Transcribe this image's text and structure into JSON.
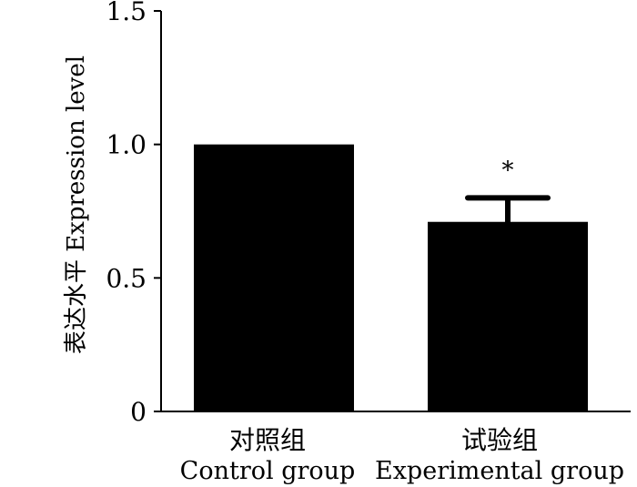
{
  "chart_data": {
    "type": "bar",
    "categories": [
      {
        "line1": "对照组",
        "line2": "Control group"
      },
      {
        "line1": "试验组",
        "line2": "Experimental group"
      }
    ],
    "values": [
      1.0,
      0.71
    ],
    "error": [
      null,
      0.09
    ],
    "significance": [
      "",
      "*"
    ],
    "ylabel": "表达水平 Expression level",
    "ylim": [
      0,
      1.5
    ],
    "yticks": [
      {
        "value": 0,
        "label": "0"
      },
      {
        "value": 0.5,
        "label": "0.5"
      },
      {
        "value": 1.0,
        "label": "1.0"
      },
      {
        "value": 1.5,
        "label": "1.5"
      }
    ],
    "bar_color": "#000000",
    "grid": false
  }
}
